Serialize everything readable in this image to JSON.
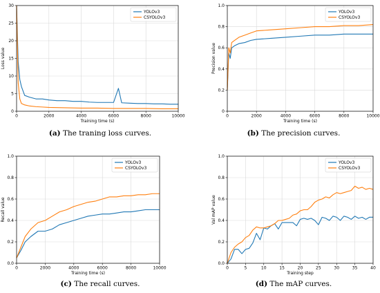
{
  "colors": {
    "series1": "#1f77b4",
    "series2": "#ff7f0e",
    "grid": "#d9d9d9"
  },
  "captions": [
    {
      "tag": "(a)",
      "text": " The traning loss curves."
    },
    {
      "tag": "(b)",
      "text": " The precision curves."
    },
    {
      "tag": "(c)",
      "text": " The recall curves."
    },
    {
      "tag": "(d)",
      "text": " The mAP curves."
    }
  ],
  "chart_data": [
    {
      "type": "line",
      "xlabel": "Training time (s)",
      "ylabel": "Loss value",
      "xlim": [
        0,
        10000
      ],
      "ylim": [
        0,
        30
      ],
      "xticks": [
        "0",
        "2000",
        "4000",
        "6000",
        "8000",
        "10000"
      ],
      "yticks": [
        "0",
        "5",
        "10",
        "15",
        "20",
        "25",
        "30"
      ],
      "grid": true,
      "legend": "top-right",
      "series": [
        {
          "name": "YOLOv3",
          "x": [
            0,
            100,
            200,
            300,
            500,
            800,
            1200,
            1600,
            2000,
            2500,
            3000,
            3500,
            4000,
            4500,
            5000,
            5500,
            6000,
            6300,
            6500,
            7000,
            7500,
            8000,
            8500,
            9000,
            9500,
            10000
          ],
          "y": [
            30,
            14,
            9,
            7,
            4.5,
            4,
            3.5,
            3.5,
            3.2,
            3.0,
            3.0,
            2.8,
            2.8,
            2.6,
            2.5,
            2.5,
            2.5,
            6.5,
            2.4,
            2.3,
            2.2,
            2.2,
            2.1,
            2.1,
            2.0,
            2.0
          ]
        },
        {
          "name": "CSYOLOv3",
          "x": [
            0,
            100,
            200,
            300,
            500,
            800,
            1200,
            1600,
            2000,
            3000,
            4000,
            5000,
            6000,
            7000,
            8000,
            9000,
            10000
          ],
          "y": [
            30,
            8,
            3.5,
            2.2,
            1.8,
            1.5,
            1.3,
            1.2,
            1.1,
            1.0,
            0.9,
            0.9,
            0.8,
            0.8,
            0.8,
            0.7,
            0.7
          ]
        }
      ]
    },
    {
      "type": "line",
      "xlabel": "Training time (s)",
      "ylabel": "Precision value",
      "xlim": [
        0,
        10000
      ],
      "ylim": [
        0,
        1.0
      ],
      "xticks": [
        "0",
        "2000",
        "4000",
        "6000",
        "8000",
        "10000"
      ],
      "yticks": [
        "0",
        "0.2",
        "0.4",
        "0.6",
        "0.8",
        "1.0"
      ],
      "grid": true,
      "legend": "top-right",
      "series": [
        {
          "name": "YOLOv3",
          "x": [
            0,
            100,
            200,
            300,
            500,
            800,
            1200,
            1600,
            2000,
            3000,
            4000,
            5000,
            6000,
            7000,
            8000,
            9000,
            10000
          ],
          "y": [
            0.2,
            0.55,
            0.5,
            0.6,
            0.62,
            0.64,
            0.65,
            0.67,
            0.68,
            0.69,
            0.7,
            0.71,
            0.72,
            0.72,
            0.73,
            0.73,
            0.73
          ]
        },
        {
          "name": "CSYOLOv3",
          "x": [
            0,
            100,
            200,
            300,
            500,
            800,
            1200,
            1600,
            2000,
            3000,
            4000,
            5000,
            6000,
            7000,
            8000,
            9000,
            10000
          ],
          "y": [
            0.2,
            0.6,
            0.55,
            0.65,
            0.67,
            0.7,
            0.72,
            0.74,
            0.76,
            0.77,
            0.78,
            0.79,
            0.8,
            0.8,
            0.81,
            0.81,
            0.82
          ]
        }
      ]
    },
    {
      "type": "line",
      "xlabel": "Training time (s)",
      "ylabel": "Recall value",
      "xlim": [
        0,
        10000
      ],
      "ylim": [
        0,
        1.0
      ],
      "xticks": [
        "0",
        "2000",
        "4000",
        "6000",
        "8000",
        "10000"
      ],
      "yticks": [
        "0.0",
        "0.2",
        "0.4",
        "0.6",
        "0.8",
        "1.0"
      ],
      "grid": true,
      "legend": "top-right",
      "series": [
        {
          "name": "YOLOv3",
          "x": [
            0,
            300,
            600,
            1000,
            1500,
            2000,
            2500,
            3000,
            3500,
            4000,
            4500,
            5000,
            5500,
            6000,
            6500,
            7000,
            7500,
            8000,
            8500,
            9000,
            9500,
            10000
          ],
          "y": [
            0.05,
            0.12,
            0.2,
            0.25,
            0.3,
            0.3,
            0.32,
            0.36,
            0.38,
            0.4,
            0.42,
            0.44,
            0.45,
            0.46,
            0.46,
            0.47,
            0.48,
            0.48,
            0.49,
            0.5,
            0.5,
            0.5
          ]
        },
        {
          "name": "CSYOLOv3",
          "x": [
            0,
            300,
            600,
            1000,
            1500,
            2000,
            2500,
            3000,
            3500,
            4000,
            4500,
            5000,
            5500,
            6000,
            6500,
            7000,
            7500,
            8000,
            8500,
            9000,
            9500,
            10000
          ],
          "y": [
            0.05,
            0.15,
            0.25,
            0.32,
            0.38,
            0.4,
            0.44,
            0.48,
            0.5,
            0.53,
            0.55,
            0.57,
            0.58,
            0.6,
            0.62,
            0.62,
            0.63,
            0.63,
            0.64,
            0.64,
            0.65,
            0.65
          ]
        }
      ]
    },
    {
      "type": "line",
      "xlabel": "Training step",
      "ylabel": "Val mAP value",
      "xlim": [
        0,
        40
      ],
      "ylim": [
        0,
        1.0
      ],
      "xticks": [
        "0",
        "5",
        "10",
        "15",
        "20",
        "25",
        "30",
        "35",
        "40"
      ],
      "yticks": [
        "0.0",
        "0.2",
        "0.4",
        "0.6",
        "0.8",
        "1.0"
      ],
      "grid": true,
      "legend": "top-right",
      "series": [
        {
          "name": "YOLOv3",
          "x": [
            0,
            1,
            2,
            3,
            4,
            5,
            6,
            7,
            8,
            9,
            10,
            11,
            12,
            13,
            14,
            15,
            16,
            17,
            18,
            19,
            20,
            21,
            22,
            23,
            24,
            25,
            26,
            27,
            28,
            29,
            30,
            31,
            32,
            33,
            34,
            35,
            36,
            37,
            38,
            39,
            40
          ],
          "y": [
            0.0,
            0.04,
            0.13,
            0.13,
            0.09,
            0.13,
            0.14,
            0.19,
            0.28,
            0.22,
            0.33,
            0.32,
            0.35,
            0.37,
            0.32,
            0.38,
            0.38,
            0.38,
            0.38,
            0.35,
            0.41,
            0.42,
            0.41,
            0.42,
            0.4,
            0.36,
            0.43,
            0.42,
            0.4,
            0.44,
            0.43,
            0.4,
            0.44,
            0.43,
            0.41,
            0.44,
            0.42,
            0.43,
            0.41,
            0.43,
            0.43
          ]
        },
        {
          "name": "CSYOLOv3",
          "x": [
            0,
            1,
            2,
            3,
            4,
            5,
            6,
            7,
            8,
            9,
            10,
            11,
            12,
            13,
            14,
            15,
            16,
            17,
            18,
            19,
            20,
            21,
            22,
            23,
            24,
            25,
            26,
            27,
            28,
            29,
            30,
            31,
            32,
            33,
            34,
            35,
            36,
            37,
            38,
            39,
            40
          ],
          "y": [
            0.0,
            0.1,
            0.15,
            0.18,
            0.2,
            0.24,
            0.26,
            0.31,
            0.34,
            0.33,
            0.33,
            0.34,
            0.35,
            0.37,
            0.4,
            0.4,
            0.41,
            0.42,
            0.45,
            0.46,
            0.49,
            0.5,
            0.5,
            0.53,
            0.57,
            0.59,
            0.6,
            0.62,
            0.61,
            0.64,
            0.66,
            0.65,
            0.66,
            0.67,
            0.68,
            0.72,
            0.7,
            0.71,
            0.69,
            0.7,
            0.69
          ]
        }
      ]
    }
  ]
}
